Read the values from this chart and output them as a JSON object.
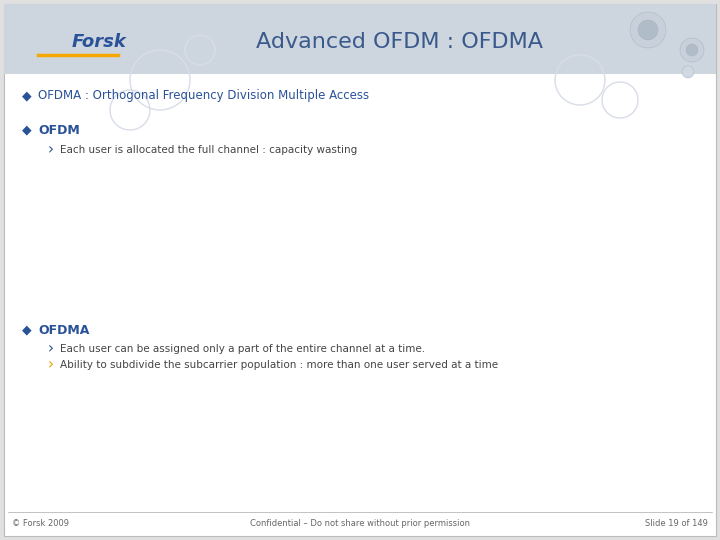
{
  "title": "Advanced OFDM : OFDMA",
  "orange_color": "#F5A800",
  "blue_color": "#1515CC",
  "yellow_color": "#FFFFAA",
  "yellow_border": "#CCCC88",
  "dark_blue_text": "#2a4a8c",
  "gray_text": "#555555",
  "line1": "OFDMA : Orthogonal Frequency Division Multiple Access",
  "line2": "OFDM",
  "line2_sub": "Each user is allocated the full channel : capacity wasting",
  "line3": "OFDMA",
  "line3_sub1": "Each user can be assigned only a part of the entire channel at a time.",
  "line3_sub2": "Ability to subdivide the subcarrier population : more than one user served at a time",
  "footer_left": "© Forsk 2009",
  "footer_center": "Confidential – Do not share without prior permission",
  "footer_right": "Slide 19 of 149",
  "header_color": "#cdd5df",
  "slide_white": "#ffffff",
  "outer_bg": "#e0e0e0"
}
